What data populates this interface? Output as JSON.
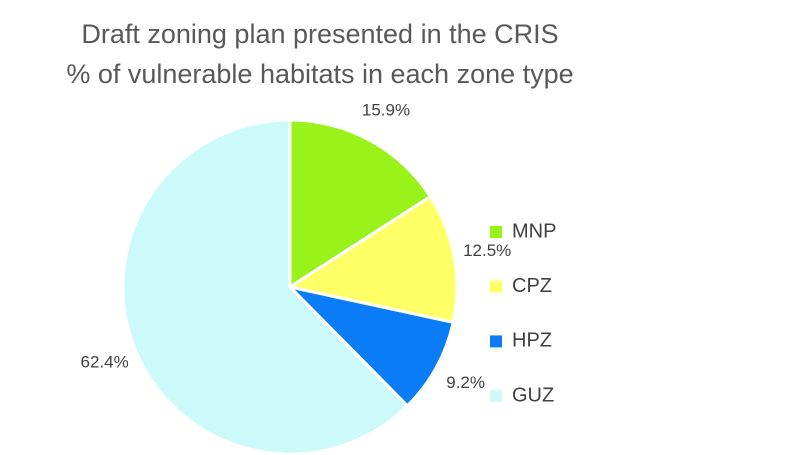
{
  "chart_data": {
    "type": "pie",
    "title": "Draft zoning plan presented in the CRIS",
    "subtitle": "% of vulnerable habitats in each zone type",
    "categories": [
      "MNP",
      "CPZ",
      "HPZ",
      "GUZ"
    ],
    "values": [
      15.9,
      12.5,
      9.2,
      62.4
    ],
    "value_labels": [
      "15.9%",
      "12.5%",
      "9.2%",
      "62.4%"
    ],
    "colors": [
      "#99f31a",
      "#ffff66",
      "#0a7cf5",
      "#ccfafa"
    ],
    "legend": "right"
  }
}
